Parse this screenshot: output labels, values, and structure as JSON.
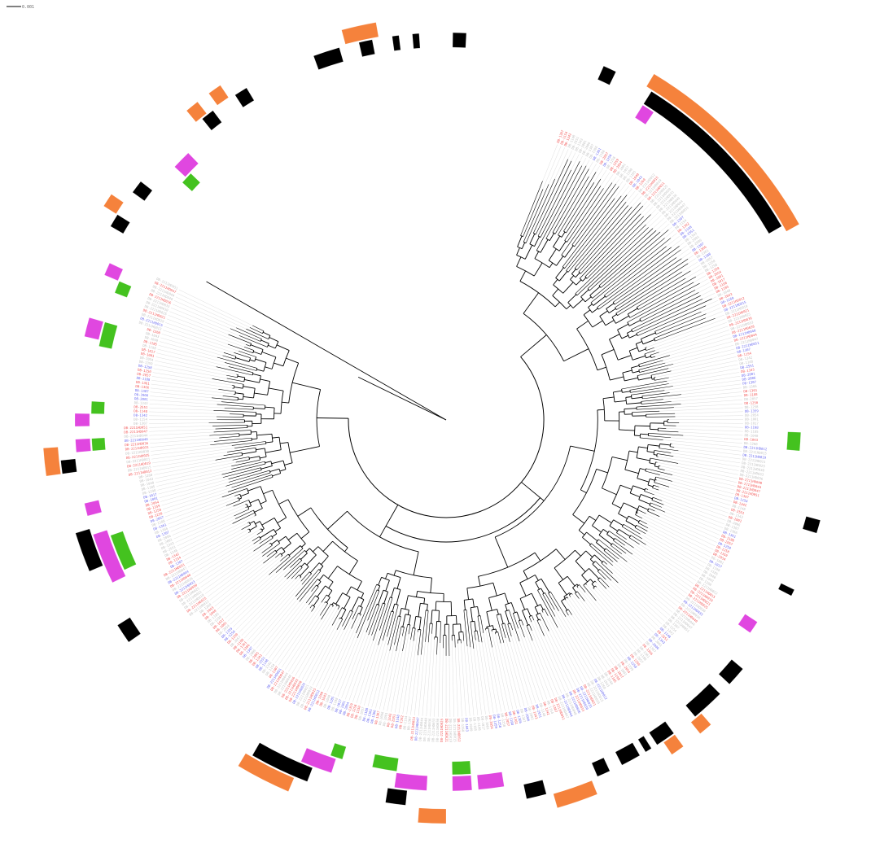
{
  "scale_bar": {
    "label": "0.001"
  },
  "colors": {
    "branch": "#000000",
    "leader": "#c8c8c8",
    "label_red": "#f25a5a",
    "label_blue": "#6b6bf0",
    "label_gray": "#c4c4c4",
    "ring_orange": "#f5823c",
    "ring_black": "#000000",
    "ring_magenta": "#e047e0",
    "ring_green": "#44c21f"
  },
  "tree": {
    "tip_count": 360,
    "tip_labels_sample": [
      "DB-1307",
      "DB-1154",
      "DB-1342",
      "DB-1148",
      "DB-2551",
      "DB-1343",
      "DB-2001",
      "DB-2006",
      "DB-1307",
      "DB-1366",
      "DB-1361",
      "DB-1188",
      "DB-2057",
      "DB-1250",
      "DB-1258",
      "DB-1359",
      "DB-2054",
      "DB-1001",
      "DB-1017",
      "DB-1198",
      "DB-1185",
      "DB-1040",
      "DB-1043",
      "DB-1260",
      "DB-2211HD012",
      "DB-2211HD015",
      "DB-2211HD019",
      "DB-2211HD021",
      "DB-2211HD025",
      "DB-2211HD030",
      "DB-2211HD033",
      "DB-2211HD036",
      "DB-2211HD040",
      "DB-2211HD044",
      "DB-2211HD047",
      "DB-2211HD051"
    ]
  },
  "rings": [
    {
      "name": "orange",
      "color": "#f5823c",
      "segments": [
        [
          31,
          61
        ],
        [
          345,
          350
        ],
        [
          139,
          141
        ],
        [
          144,
          146
        ],
        [
          158,
          164
        ],
        [
          180,
          184
        ],
        [
          203,
          211
        ],
        [
          262,
          266
        ],
        [
          302,
          304
        ],
        [
          320,
          322
        ],
        [
          324,
          326
        ]
      ]
    },
    {
      "name": "black",
      "color": "#000000",
      "segments": [
        [
          32,
          60
        ],
        [
          347,
          349
        ],
        [
          352,
          353
        ],
        [
          355,
          356
        ],
        [
          1,
          3
        ],
        [
          24,
          26
        ],
        [
          105,
          107
        ],
        [
          116,
          117
        ],
        [
          130,
          133
        ],
        [
          135,
          140
        ],
        [
          144,
          147
        ],
        [
          148,
          149
        ],
        [
          150,
          153
        ],
        [
          155,
          157
        ],
        [
          165,
          168
        ],
        [
          186,
          189
        ],
        [
          201,
          210
        ],
        [
          235,
          238
        ],
        [
          247,
          253
        ],
        [
          262,
          264
        ],
        [
          300,
          302
        ],
        [
          306,
          308
        ],
        [
          321,
          323
        ],
        [
          327,
          329
        ],
        [
          340,
          344
        ]
      ]
    },
    {
      "name": "magenta",
      "color": "#e047e0",
      "segments": [
        [
          32,
          34
        ],
        [
          123,
          125
        ],
        [
          171,
          175
        ],
        [
          176,
          179
        ],
        [
          183,
          188
        ],
        [
          198,
          203
        ],
        [
          244,
          252
        ],
        [
          255,
          257
        ],
        [
          265,
          267
        ],
        [
          269,
          271
        ],
        [
          283,
          286
        ],
        [
          293,
          295
        ],
        [
          313,
          316
        ]
      ]
    },
    {
      "name": "green",
      "color": "#44c21f",
      "segments": [
        [
          92,
          95
        ],
        [
          176,
          179
        ],
        [
          188,
          192
        ],
        [
          197,
          199
        ],
        [
          245,
          251
        ],
        [
          265,
          267
        ],
        [
          271,
          273
        ],
        [
          282,
          286
        ],
        [
          291,
          293
        ],
        [
          312,
          314
        ]
      ]
    }
  ]
}
